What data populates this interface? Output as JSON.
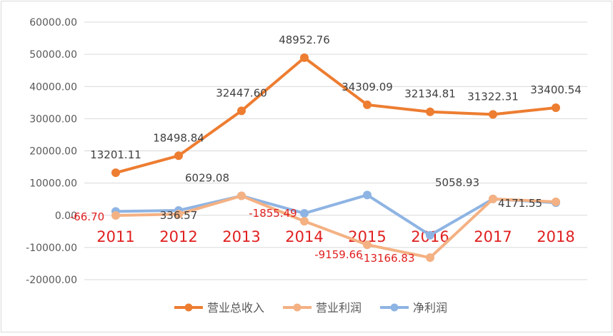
{
  "chart_data": {
    "type": "line",
    "title": "",
    "xlabel": "",
    "ylabel": "",
    "ylim": [
      -20000,
      60000
    ],
    "y_ticks": [
      -20000,
      -10000,
      0,
      10000,
      20000,
      30000,
      40000,
      50000,
      60000
    ],
    "y_tick_labels": [
      "-20000.00",
      "-10000.00",
      "0.00",
      "10000.00",
      "20000.00",
      "30000.00",
      "40000.00",
      "50000.00",
      "60000.00"
    ],
    "categories": [
      "2011",
      "2012",
      "2013",
      "2014",
      "2015",
      "2016",
      "2017",
      "2018"
    ],
    "grid": true,
    "legend_position": "bottom",
    "series": [
      {
        "name": "营业总收入",
        "color": "#ED7D31",
        "values": [
          13201.11,
          18498.84,
          32447.6,
          48952.76,
          34309.09,
          32134.81,
          31322.31,
          33400.54
        ],
        "labels": [
          "13201.11",
          "18498.84",
          "32447.60",
          "48952.76",
          "34309.09",
          "32134.81",
          "31322.31",
          "33400.54"
        ]
      },
      {
        "name": "营业利润",
        "color": "#F4B183",
        "values": [
          -66.7,
          336.57,
          6029.08,
          -1855.49,
          -9159.66,
          -13166.83,
          5058.93,
          4171.55
        ],
        "labels": [
          "-66.70",
          "336.57",
          "6029.08",
          "-1855.49",
          "-9159.66",
          "-13166.83",
          "5058.93",
          "4171.55"
        ]
      },
      {
        "name": "净利润",
        "color": "#8EB4E3",
        "values": [
          1200,
          1500,
          6029.08,
          600,
          6300,
          -6200,
          5058.93,
          3900
        ],
        "labels": []
      }
    ],
    "category_label_color": "#E02020",
    "negative_label_color": "#E02020",
    "label_color": "#404040",
    "axis_label_color": "#595959",
    "gridline_color": "#D9D9D9"
  }
}
